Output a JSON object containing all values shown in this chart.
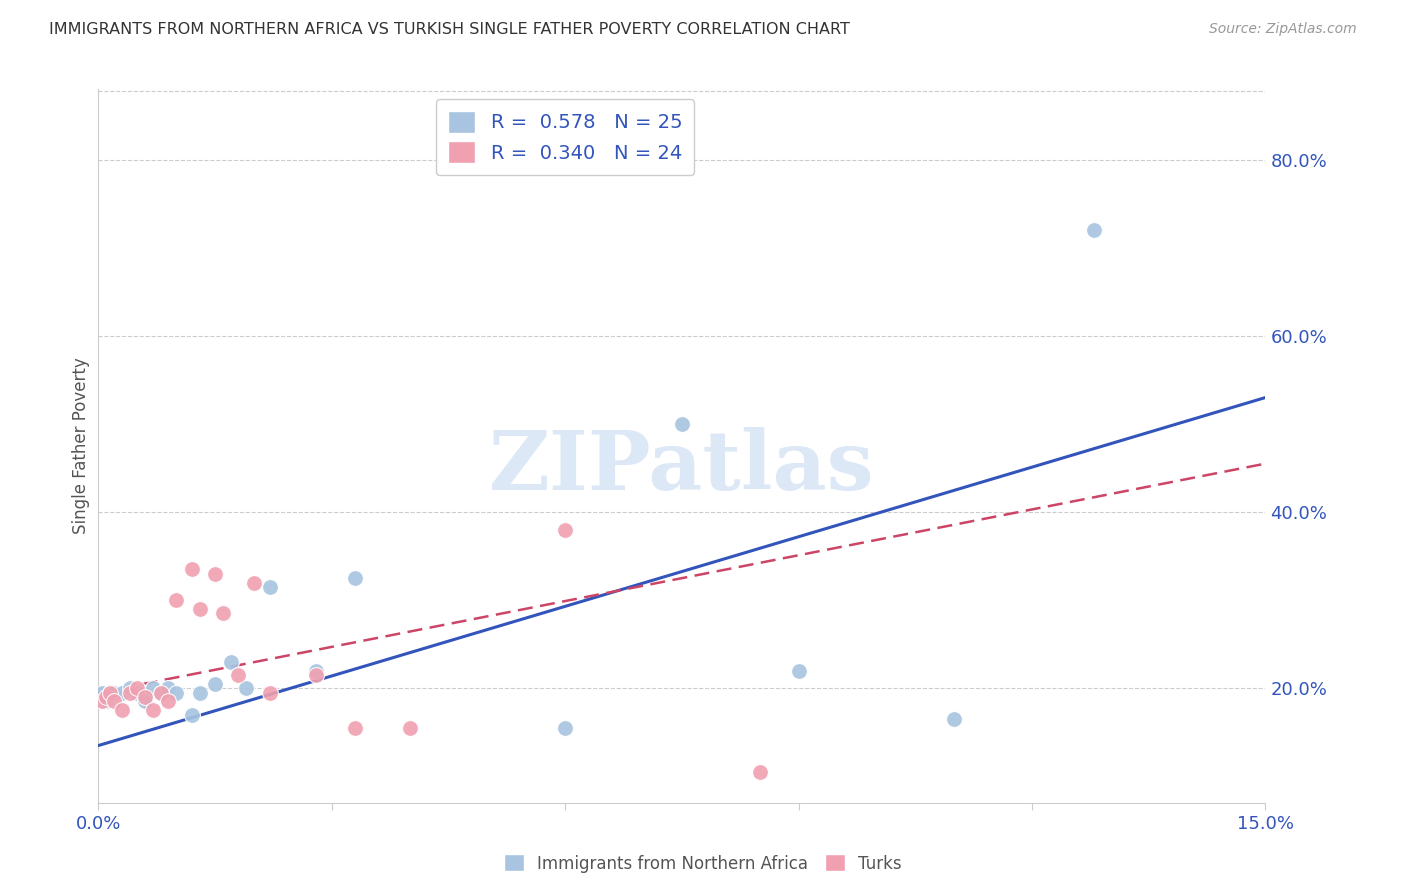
{
  "title": "IMMIGRANTS FROM NORTHERN AFRICA VS TURKISH SINGLE FATHER POVERTY CORRELATION CHART",
  "source": "Source: ZipAtlas.com",
  "ylabel": "Single Father Poverty",
  "legend_label1": "Immigrants from Northern Africa",
  "legend_label2": "Turks",
  "R1": 0.578,
  "N1": 25,
  "R2": 0.34,
  "N2": 24,
  "xlim": [
    0.0,
    0.15
  ],
  "ylim": [
    0.07,
    0.88
  ],
  "yticks": [
    0.2,
    0.4,
    0.6,
    0.8
  ],
  "ytick_labels": [
    "20.0%",
    "40.0%",
    "60.0%",
    "80.0%"
  ],
  "xticks": [
    0.0,
    0.03,
    0.06,
    0.09,
    0.12,
    0.15
  ],
  "xtick_labels": [
    "0.0%",
    "",
    "",
    "",
    "",
    "15.0%"
  ],
  "color_blue": "#a8c4e0",
  "color_pink": "#f0a0b0",
  "color_blue_line": "#3355bb",
  "color_pink_line": "#cc4466",
  "watermark_color": "#dce8f5",
  "watermark": "ZIPatlas",
  "blue_x": [
    0.0005,
    0.001,
    0.0015,
    0.002,
    0.003,
    0.004,
    0.005,
    0.006,
    0.007,
    0.008,
    0.009,
    0.01,
    0.012,
    0.013,
    0.015,
    0.017,
    0.019,
    0.022,
    0.028,
    0.033,
    0.06,
    0.075,
    0.09,
    0.11,
    0.128
  ],
  "blue_y": [
    0.195,
    0.185,
    0.195,
    0.195,
    0.195,
    0.2,
    0.195,
    0.185,
    0.2,
    0.195,
    0.2,
    0.195,
    0.17,
    0.195,
    0.205,
    0.23,
    0.2,
    0.315,
    0.22,
    0.325,
    0.155,
    0.5,
    0.22,
    0.165,
    0.72
  ],
  "pink_x": [
    0.0005,
    0.001,
    0.0015,
    0.002,
    0.003,
    0.004,
    0.005,
    0.006,
    0.007,
    0.008,
    0.009,
    0.01,
    0.012,
    0.013,
    0.015,
    0.016,
    0.018,
    0.02,
    0.022,
    0.028,
    0.033,
    0.04,
    0.06,
    0.085
  ],
  "pink_y": [
    0.185,
    0.19,
    0.195,
    0.185,
    0.175,
    0.195,
    0.2,
    0.19,
    0.175,
    0.195,
    0.185,
    0.3,
    0.335,
    0.29,
    0.33,
    0.285,
    0.215,
    0.32,
    0.195,
    0.215,
    0.155,
    0.155,
    0.38,
    0.105
  ],
  "blue_line_x": [
    0.0,
    0.15
  ],
  "blue_line_y": [
    0.135,
    0.53
  ],
  "pink_line_x": [
    0.0,
    0.15
  ],
  "pink_line_y": [
    0.195,
    0.455
  ]
}
